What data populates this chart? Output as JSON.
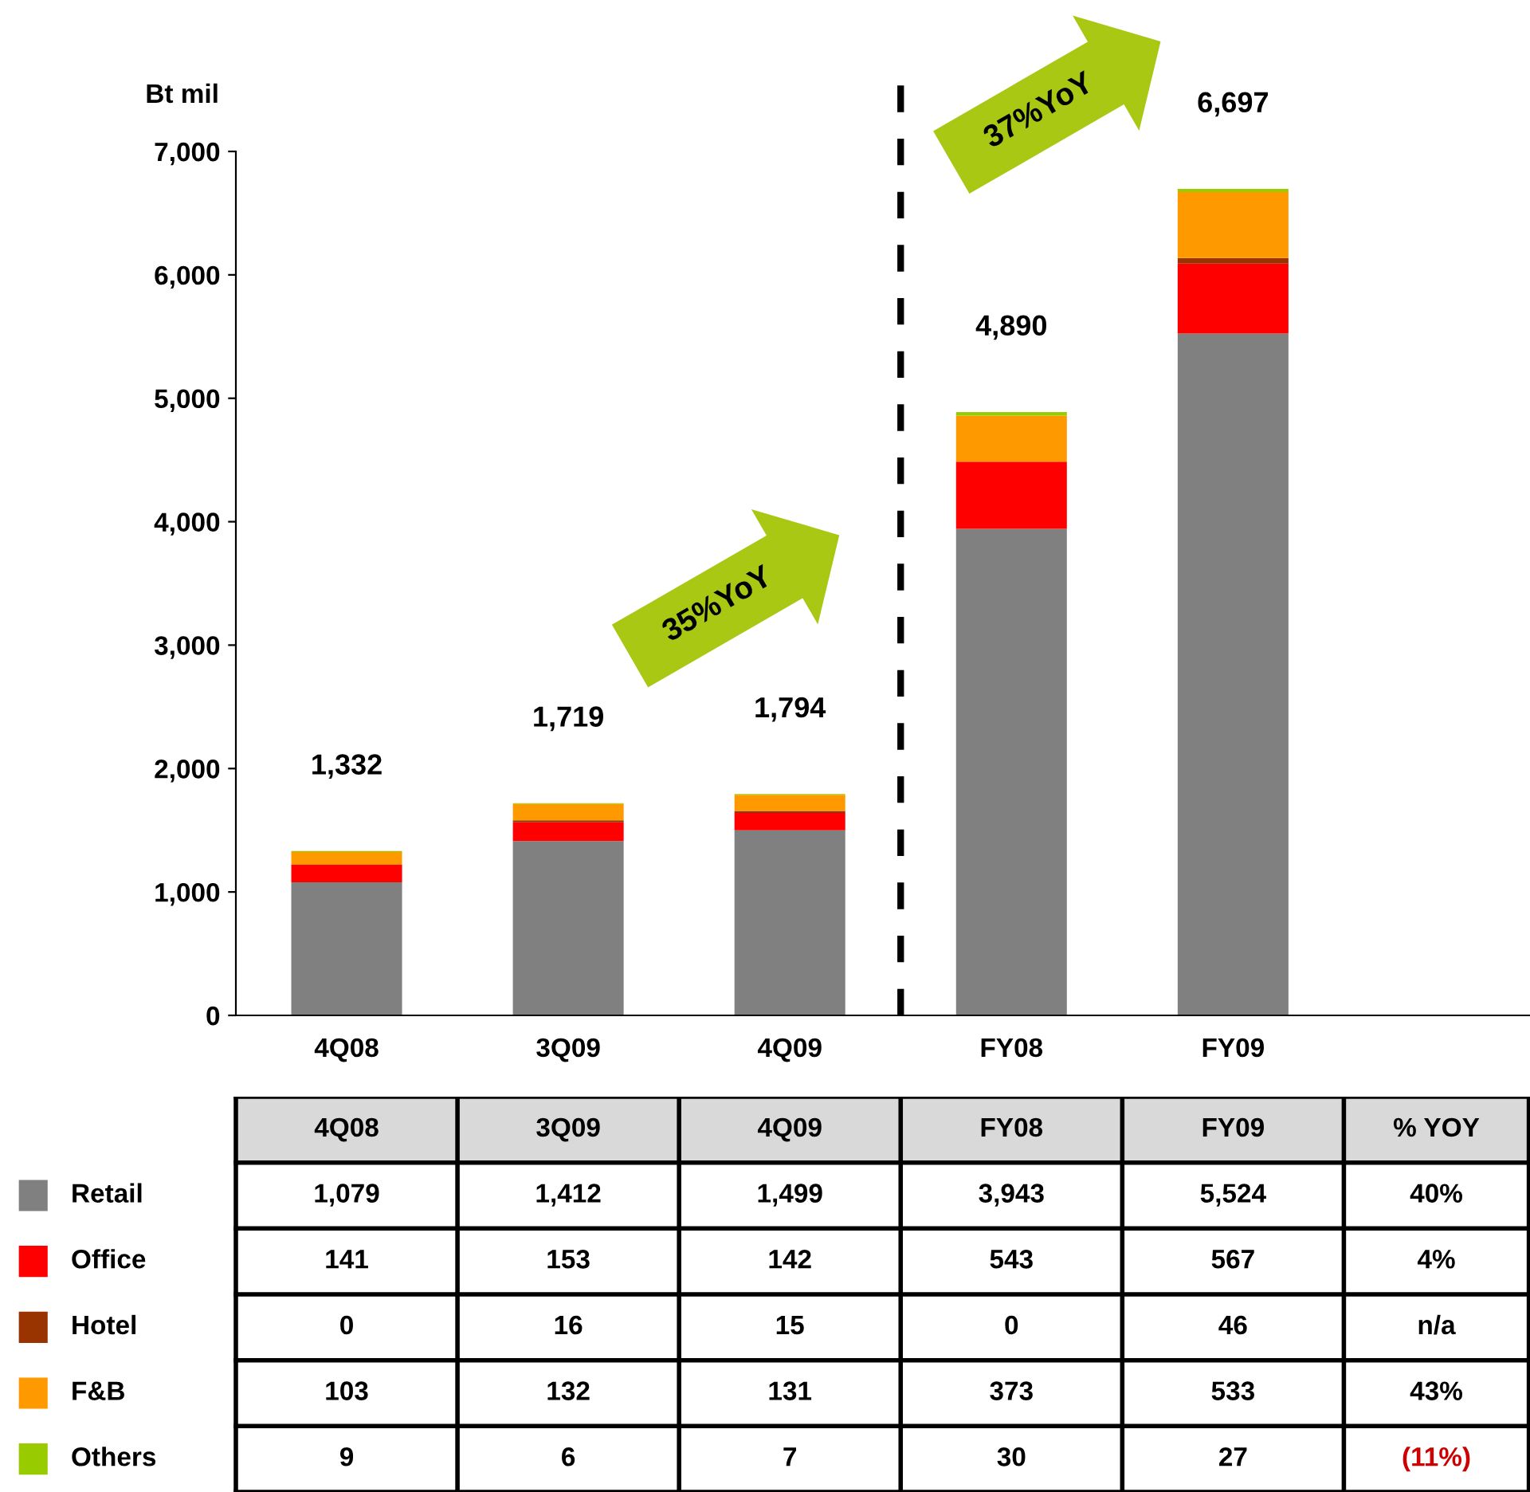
{
  "chart_data": {
    "type": "bar",
    "stacked": true,
    "ylabel": "Bt mil",
    "categories": [
      "4Q08",
      "3Q09",
      "4Q09",
      "FY08",
      "FY09"
    ],
    "series": [
      {
        "name": "Retail",
        "color": "#808080",
        "values": [
          1079,
          1412,
          1499,
          3943,
          5524
        ],
        "value_labels": [
          "1,079",
          "1,412",
          "1,499",
          "3,943",
          "5,524"
        ]
      },
      {
        "name": "Office",
        "color": "#ff0000",
        "values": [
          141,
          153,
          142,
          543,
          567
        ],
        "value_labels": [
          "141",
          "153",
          "142",
          "543",
          "567"
        ]
      },
      {
        "name": "Hotel",
        "color": "#993300",
        "values": [
          0,
          16,
          15,
          0,
          46
        ],
        "value_labels": [
          "0",
          "16",
          "15",
          "0",
          "46"
        ]
      },
      {
        "name": "F&B",
        "color": "#ff9900",
        "values": [
          103,
          132,
          131,
          373,
          533
        ],
        "value_labels": [
          "103",
          "132",
          "131",
          "373",
          "533"
        ]
      },
      {
        "name": "Others",
        "color": "#99cc00",
        "values": [
          9,
          6,
          7,
          30,
          27
        ],
        "value_labels": [
          "9",
          "6",
          "7",
          "30",
          "27"
        ]
      }
    ],
    "totals": [
      "1,332",
      "1,719",
      "1,794",
      "4,890",
      "6,697"
    ],
    "ylim": [
      0,
      7000
    ],
    "yticks": [
      0,
      {
        "value": 1000,
        "label": "1,000"
      },
      {
        "value": 2000,
        "label": "2,000"
      },
      {
        "value": 3000,
        "label": "3,000"
      },
      {
        "value": 4000,
        "label": "4,000"
      },
      {
        "value": 5000,
        "label": "5,000"
      },
      {
        "value": 6000,
        "label": "6,000"
      },
      {
        "value": 7000,
        "label": "7,000"
      }
    ],
    "annotations": [
      "35%YoY",
      "37%YoY",
      "% YOY",
      "40%",
      "4%",
      "n/a",
      "43%",
      "(11%)"
    ],
    "legend": "bottom left",
    "grid": false
  }
}
